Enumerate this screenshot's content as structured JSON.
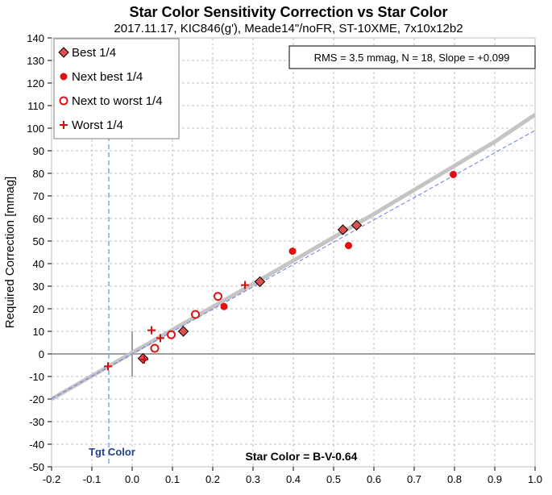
{
  "chart_data": {
    "type": "scatter",
    "title": "Star Color Sensitivity Correction vs Star Color",
    "subtitle": "2017.11.17, KIC846(g'), Meade14\"/noFR, ST-10XME, 7x10x12b2",
    "xlabel": "Star Color = B-V-0.64",
    "ylabel": "Required Correction [mmag]",
    "xlim": [
      -0.2,
      1.0
    ],
    "ylim": [
      -50,
      140
    ],
    "x_ticks": [
      "-0.2",
      "-0.1",
      "0.0",
      "0.1",
      "0.2",
      "0.3",
      "0.4",
      "0.5",
      "0.6",
      "0.7",
      "0.8",
      "0.9",
      "1.0"
    ],
    "y_ticks": [
      "140",
      "130",
      "120",
      "110",
      "100",
      "90",
      "80",
      "70",
      "60",
      "50",
      "40",
      "30",
      "20",
      "10",
      "0",
      "-10",
      "-20",
      "-30",
      "-40",
      "-50"
    ],
    "grid": true,
    "legend_position": "top-left",
    "stats_text": "RMS = 3.5 mmag, N = 18, Slope = +0.099",
    "target_label": "Tgt Color",
    "target_x": -0.058,
    "series": [
      {
        "name": "Best 1/4",
        "marker": "diamond",
        "color": "#e05050",
        "points": [
          [
            0.027,
            -2
          ],
          [
            0.127,
            10
          ],
          [
            0.317,
            32
          ],
          [
            0.523,
            55
          ],
          [
            0.557,
            57
          ]
        ]
      },
      {
        "name": "Next best 1/4",
        "marker": "dot",
        "color": "#e01010",
        "points": [
          [
            0.228,
            21
          ],
          [
            0.398,
            45.5
          ],
          [
            0.537,
            48
          ],
          [
            0.797,
            79.5
          ]
        ]
      },
      {
        "name": "Next to worst 1/4",
        "marker": "ring",
        "color": "#e01010",
        "points": [
          [
            0.056,
            2.5
          ],
          [
            0.097,
            8.5
          ],
          [
            0.157,
            17.5
          ],
          [
            0.213,
            25.5
          ]
        ]
      },
      {
        "name": "Worst 1/4",
        "marker": "plus",
        "color": "#d01010",
        "points": [
          [
            -0.06,
            -5.5
          ],
          [
            0.03,
            -2.5
          ],
          [
            0.048,
            10.5
          ],
          [
            0.07,
            7
          ],
          [
            0.28,
            30.5
          ]
        ]
      }
    ],
    "fit_curve": [
      [
        -0.2,
        -20
      ],
      [
        0.0,
        0.5
      ],
      [
        0.3,
        31
      ],
      [
        0.6,
        62
      ],
      [
        0.9,
        94
      ],
      [
        1.0,
        106
      ]
    ],
    "fit_line": [
      [
        -0.2,
        -19.8
      ],
      [
        1.0,
        99
      ]
    ],
    "colors": {
      "grid": "#bfbfbf",
      "axis_zero": "#a0a0a0",
      "fit": "#c4c4c4",
      "fit_line": "#6b7be0",
      "target": "#7aaad6"
    }
  }
}
